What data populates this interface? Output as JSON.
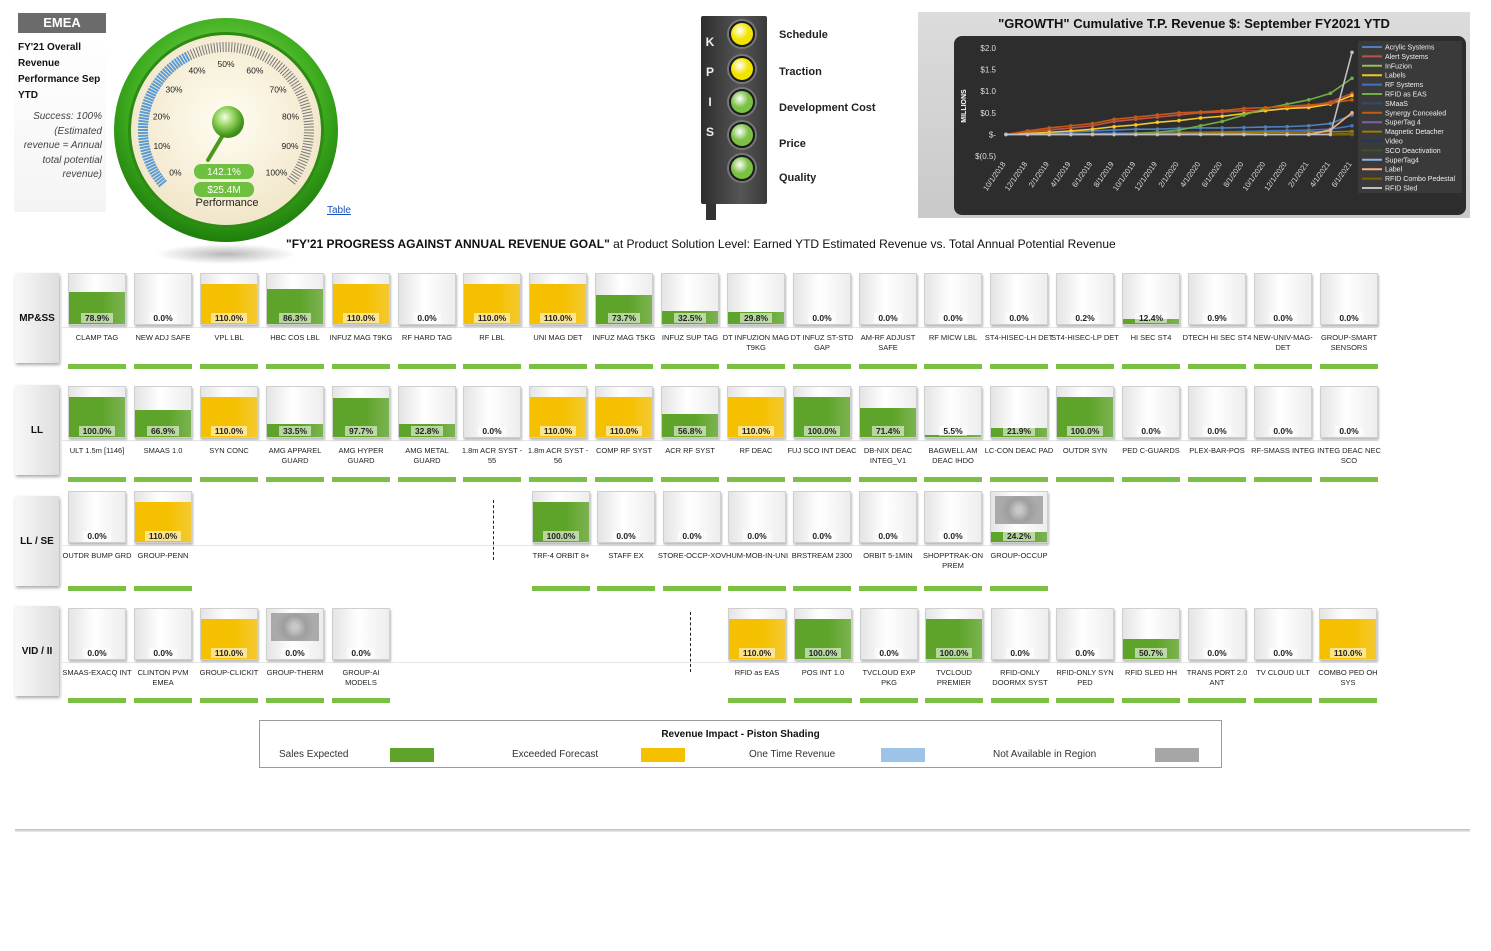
{
  "region": "EMEA",
  "overview": {
    "title": "FY'21 Overall Revenue Performance Sep YTD",
    "desc": "Success: 100% (Estimated revenue = Annual total potential revenue)"
  },
  "gauge": {
    "ticks": [
      "0%",
      "10%",
      "20%",
      "30%",
      "40%",
      "50%",
      "60%",
      "70%",
      "80%",
      "90%",
      "100%"
    ],
    "value_pct": "142.1%",
    "value_amt": "$25.4M",
    "label": "Performance"
  },
  "table_link": "Table",
  "kpi": {
    "letters": [
      "K",
      "P",
      "I",
      "S"
    ],
    "items": [
      {
        "label": "Schedule",
        "color": "#f2e400"
      },
      {
        "label": "Traction",
        "color": "#f2e400"
      },
      {
        "label": "Development Cost",
        "color": "#7bc144"
      },
      {
        "label": "Price",
        "color": "#7bc144"
      },
      {
        "label": "Quality",
        "color": "#7bc144"
      }
    ]
  },
  "chart_data": {
    "type": "line",
    "title": "\"GROWTH\" Cumulative T.P. Revenue $: September FY2021 YTD",
    "ylabel": "MILLIONS",
    "yticks": [
      "$2.0",
      "$1.5",
      "$1.0",
      "$0.5",
      "$-",
      "$(0.5)"
    ],
    "ylim": [
      -0.5,
      2.0
    ],
    "x": [
      "10/1/2018",
      "12/1/2018",
      "2/1/2019",
      "4/1/2019",
      "6/1/2019",
      "8/1/2019",
      "10/1/2019",
      "12/1/2019",
      "2/1/2020",
      "4/1/2020",
      "6/1/2020",
      "8/1/2020",
      "10/1/2020",
      "12/1/2020",
      "2/1/2021",
      "4/1/2021",
      "6/1/2021"
    ],
    "series": [
      {
        "name": "Acrylic Systems",
        "color": "#4f81bd",
        "values": [
          0,
          0,
          0.02,
          0.05,
          0.08,
          0.1,
          0.12,
          0.12,
          0.14,
          0.15,
          0.15,
          0.16,
          0.17,
          0.18,
          0.2,
          0.25,
          0.45
        ]
      },
      {
        "name": "Alert Systems",
        "color": "#c0504d",
        "values": [
          0,
          0.05,
          0.1,
          0.15,
          0.2,
          0.3,
          0.35,
          0.4,
          0.45,
          0.5,
          0.52,
          0.55,
          0.55,
          0.6,
          0.65,
          0.75,
          0.95
        ]
      },
      {
        "name": "InFuzion",
        "color": "#9bbb59",
        "values": [
          0,
          0,
          0,
          0,
          0,
          0,
          0,
          0,
          0,
          0,
          0,
          0,
          0,
          0,
          0,
          0,
          0.02
        ]
      },
      {
        "name": "Labels",
        "color": "#f6c624",
        "values": [
          0,
          0.02,
          0.05,
          0.08,
          0.12,
          0.18,
          0.22,
          0.28,
          0.32,
          0.38,
          0.42,
          0.48,
          0.55,
          0.6,
          0.62,
          0.7,
          0.9
        ]
      },
      {
        "name": "RF Systems",
        "color": "#4472c4",
        "values": [
          0,
          0,
          0,
          0.01,
          0.02,
          0.03,
          0.03,
          0.04,
          0.05,
          0.05,
          0.06,
          0.07,
          0.08,
          0.09,
          0.1,
          0.12,
          0.2
        ]
      },
      {
        "name": "RFID as EAS",
        "color": "#70ad47",
        "values": [
          0,
          0,
          0,
          0,
          0,
          0,
          0.02,
          0.05,
          0.1,
          0.2,
          0.3,
          0.45,
          0.6,
          0.7,
          0.8,
          0.95,
          1.3
        ]
      },
      {
        "name": "SMaaS",
        "color": "#2e4a7a",
        "values": [
          0,
          0,
          0,
          0,
          0,
          0,
          0,
          0,
          0,
          0,
          0,
          0,
          0,
          0,
          0,
          0,
          0.01
        ]
      },
      {
        "name": "Synergy Concealed",
        "color": "#c55a11",
        "values": [
          0,
          0.08,
          0.15,
          0.2,
          0.25,
          0.35,
          0.4,
          0.45,
          0.5,
          0.52,
          0.55,
          0.6,
          0.62,
          0.65,
          0.68,
          0.72,
          0.8
        ]
      },
      {
        "name": "SuperTag 4",
        "color": "#8064a2",
        "values": [
          0,
          0,
          0,
          0,
          0,
          0,
          0,
          0,
          0,
          0,
          0,
          0,
          0,
          0,
          0,
          0,
          0.01
        ]
      },
      {
        "name": "Magnetic Detacher",
        "color": "#9e7c0c",
        "values": [
          0,
          0,
          0,
          0,
          0.01,
          0.01,
          0.02,
          0.02,
          0.03,
          0.03,
          0.04,
          0.04,
          0.05,
          0.05,
          0.06,
          0.06,
          0.07
        ]
      },
      {
        "name": "Video",
        "color": "#203864",
        "values": [
          0,
          0,
          0,
          0,
          0,
          0,
          0,
          0,
          0,
          0,
          0,
          0,
          0,
          0,
          0,
          0,
          0
        ]
      },
      {
        "name": "SCO Deactivation",
        "color": "#375623",
        "values": [
          0,
          0,
          0,
          0,
          0,
          0,
          0,
          0,
          0,
          0,
          0,
          0,
          0,
          0,
          0,
          0,
          0.01
        ]
      },
      {
        "name": "SuperTag4",
        "color": "#8db4e2",
        "values": [
          0,
          0,
          0,
          0,
          0,
          0,
          0,
          0,
          0,
          0,
          0,
          0,
          0,
          0,
          0,
          0,
          0
        ]
      },
      {
        "name": "Label",
        "color": "#f4b183",
        "values": [
          0,
          0,
          0,
          0,
          0,
          0,
          0,
          0,
          0,
          0,
          0,
          0,
          0,
          0,
          0,
          0.1,
          0.5
        ]
      },
      {
        "name": "RFID Combo Pedestal",
        "color": "#7f6000",
        "values": [
          0,
          0,
          0,
          0,
          0,
          0,
          0,
          0,
          0,
          0,
          0,
          0,
          0,
          0,
          0,
          0,
          0
        ]
      },
      {
        "name": "RFID Sled",
        "color": "#bfbfbf",
        "values": [
          0,
          0,
          0,
          0,
          0,
          0,
          0,
          0,
          0,
          0,
          0,
          0,
          0,
          0,
          0,
          0,
          1.9
        ]
      }
    ]
  },
  "main_title_bold": "\"FY'21 PROGRESS AGAINST ANNUAL REVENUE GOAL\"",
  "main_title_rest": " at Product Solution Level: Earned YTD Estimated Revenue vs. Total Annual Potential Revenue",
  "rows": [
    {
      "name": "MP&SS",
      "tiles": [
        {
          "label": "CLAMP TAG",
          "pct": "78.9%",
          "fill": 0.789,
          "color": "green"
        },
        {
          "label": "NEW ADJ SAFE",
          "pct": "0.0%",
          "fill": 0,
          "color": "green"
        },
        {
          "label": "VPL LBL",
          "pct": "110.0%",
          "fill": 1,
          "color": "yellow"
        },
        {
          "label": "HBC COS LBL",
          "pct": "86.3%",
          "fill": 0.863,
          "color": "green"
        },
        {
          "label": "INFUZ MAG T9KG",
          "pct": "110.0%",
          "fill": 1,
          "color": "yellow"
        },
        {
          "label": "RF HARD TAG",
          "pct": "0.0%",
          "fill": 0,
          "color": "green"
        },
        {
          "label": "RF LBL",
          "pct": "110.0%",
          "fill": 1,
          "color": "yellow"
        },
        {
          "label": "UNI MAG DET",
          "pct": "110.0%",
          "fill": 1,
          "color": "yellow"
        },
        {
          "label": "INFUZ MAG T5KG",
          "pct": "73.7%",
          "fill": 0.737,
          "color": "green"
        },
        {
          "label": "INFUZ SUP TAG",
          "pct": "32.5%",
          "fill": 0.325,
          "color": "green"
        },
        {
          "label": "DT INFUZION MAG T9KG",
          "pct": "29.8%",
          "fill": 0.298,
          "color": "green"
        },
        {
          "label": "DT INFUZ ST-STD GAP",
          "pct": "0.0%",
          "fill": 0,
          "color": "green"
        },
        {
          "label": "AM-RF ADJUST SAFE",
          "pct": "0.0%",
          "fill": 0,
          "color": "green"
        },
        {
          "label": "RF MICW LBL",
          "pct": "0.0%",
          "fill": 0,
          "color": "green"
        },
        {
          "label": "ST4-HISEC-LH DET",
          "pct": "0.0%",
          "fill": 0,
          "color": "green"
        },
        {
          "label": "ST4-HISEC-LP DET",
          "pct": "0.2%",
          "fill": 0,
          "color": "green"
        },
        {
          "label": "HI SEC ST4",
          "pct": "12.4%",
          "fill": 0.124,
          "color": "green"
        },
        {
          "label": "DTECH HI SEC ST4",
          "pct": "0.9%",
          "fill": 0,
          "color": "green"
        },
        {
          "label": "NEW-UNIV-MAG-DET",
          "pct": "0.0%",
          "fill": 0,
          "color": "green"
        },
        {
          "label": "GROUP-SMART SENSORS",
          "pct": "0.0%",
          "fill": 0,
          "color": "green"
        }
      ]
    },
    {
      "name": "LL",
      "tiles": [
        {
          "label": "ULT 1.5m [1146]",
          "pct": "100.0%",
          "fill": 1,
          "color": "green"
        },
        {
          "label": "SMAAS 1.0",
          "pct": "66.9%",
          "fill": 0.669,
          "color": "green"
        },
        {
          "label": "SYN CONC",
          "pct": "110.0%",
          "fill": 1,
          "color": "yellow"
        },
        {
          "label": "AMG APPAREL GUARD",
          "pct": "33.5%",
          "fill": 0.335,
          "color": "green"
        },
        {
          "label": "AMG HYPER GUARD",
          "pct": "97.7%",
          "fill": 0.977,
          "color": "green"
        },
        {
          "label": "AMG METAL GUARD",
          "pct": "32.8%",
          "fill": 0.328,
          "color": "green"
        },
        {
          "label": "1.8m ACR SYST - 55",
          "pct": "0.0%",
          "fill": 0,
          "color": "green"
        },
        {
          "label": "1.8m ACR SYST - 56",
          "pct": "110.0%",
          "fill": 1,
          "color": "yellow"
        },
        {
          "label": "COMP RF SYST",
          "pct": "110.0%",
          "fill": 1,
          "color": "yellow"
        },
        {
          "label": "ACR RF SYST",
          "pct": "56.8%",
          "fill": 0.568,
          "color": "green"
        },
        {
          "label": "RF DEAC",
          "pct": "110.0%",
          "fill": 1,
          "color": "yellow"
        },
        {
          "label": "FUJ SCO INT DEAC",
          "pct": "100.0%",
          "fill": 1,
          "color": "green"
        },
        {
          "label": "DB-NIX DEAC INTEG_V1",
          "pct": "71.4%",
          "fill": 0.714,
          "color": "green"
        },
        {
          "label": "BAGWELL AM DEAC IHDO",
          "pct": "5.5%",
          "fill": 0.055,
          "color": "green"
        },
        {
          "label": "LC-CON DEAC PAD",
          "pct": "21.9%",
          "fill": 0.219,
          "color": "green"
        },
        {
          "label": "OUTDR SYN",
          "pct": "100.0%",
          "fill": 1,
          "color": "green"
        },
        {
          "label": "PED C-GUARDS",
          "pct": "0.0%",
          "fill": 0,
          "color": "green"
        },
        {
          "label": "PLEX-BAR-POS",
          "pct": "0.0%",
          "fill": 0,
          "color": "green"
        },
        {
          "label": "RF-SMASS INTEG",
          "pct": "0.0%",
          "fill": 0,
          "color": "green"
        },
        {
          "label": "INTEG DEAC NEC SCO",
          "pct": "0.0%",
          "fill": 0,
          "color": "green"
        }
      ]
    },
    {
      "name": "LL / SE",
      "tiles": [
        {
          "label": "OUTDR BUMP GRD",
          "pct": "0.0%",
          "fill": 0,
          "color": "green"
        },
        {
          "label": "GROUP-PENN",
          "pct": "110.0%",
          "fill": 1,
          "color": "yellow"
        },
        {
          "label": "TRF-4 ORBIT 8+",
          "pct": "100.0%",
          "fill": 1,
          "color": "green"
        },
        {
          "label": "STAFF EX",
          "pct": "0.0%",
          "fill": 0,
          "color": "green"
        },
        {
          "label": "STORE-OCCP-XOV",
          "pct": "0.0%",
          "fill": 0,
          "color": "green"
        },
        {
          "label": "HUM-MOB-IN-UNI",
          "pct": "0.0%",
          "fill": 0,
          "color": "green"
        },
        {
          "label": "BRSTREAM 2300",
          "pct": "0.0%",
          "fill": 0,
          "color": "green"
        },
        {
          "label": "ORBIT 5-1MIN",
          "pct": "0.0%",
          "fill": 0,
          "color": "green"
        },
        {
          "label": "SHOPPTRAK-ON PREM",
          "pct": "0.0%",
          "fill": 0,
          "color": "green"
        },
        {
          "label": "GROUP-OCCUP",
          "pct": "24.2%",
          "fill": 0.242,
          "color": "green",
          "pict": true
        }
      ]
    },
    {
      "name": "VID / II",
      "tiles": [
        {
          "label": "SMAAS-EXACQ INT",
          "pct": "0.0%",
          "fill": 0,
          "color": "green"
        },
        {
          "label": "CLINTON PVM EMEA",
          "pct": "0.0%",
          "fill": 0,
          "color": "green"
        },
        {
          "label": "GROUP-CLICKIT",
          "pct": "110.0%",
          "fill": 1,
          "color": "yellow"
        },
        {
          "label": "GROUP-THERM",
          "pct": "0.0%",
          "fill": 0,
          "color": "green",
          "pict": true
        },
        {
          "label": "GROUP-AI MODELS",
          "pct": "0.0%",
          "fill": 0,
          "color": "green"
        },
        {
          "label": "RFID as EAS",
          "pct": "110.0%",
          "fill": 1,
          "color": "yellow"
        },
        {
          "label": "POS INT 1.0",
          "pct": "100.0%",
          "fill": 1,
          "color": "green"
        },
        {
          "label": "TVCLOUD EXP PKG",
          "pct": "0.0%",
          "fill": 0,
          "color": "green"
        },
        {
          "label": "TVCLOUD PREMIER",
          "pct": "100.0%",
          "fill": 1,
          "color": "green"
        },
        {
          "label": "RFID-ONLY DOORMX SYST",
          "pct": "0.0%",
          "fill": 0,
          "color": "green"
        },
        {
          "label": "RFID-ONLY SYN PED",
          "pct": "0.0%",
          "fill": 0,
          "color": "green"
        },
        {
          "label": "RFID SLED HH",
          "pct": "50.7%",
          "fill": 0.507,
          "color": "green"
        },
        {
          "label": "TRANS PORT 2.0 ANT",
          "pct": "0.0%",
          "fill": 0,
          "color": "green"
        },
        {
          "label": "TV CLOUD ULT",
          "pct": "0.0%",
          "fill": 0,
          "color": "green"
        },
        {
          "label": "COMBO PED OH SYS",
          "pct": "110.0%",
          "fill": 1,
          "color": "yellow"
        }
      ]
    }
  ],
  "legend": {
    "title": "Revenue Impact - Piston Shading",
    "items": [
      {
        "label": "Sales Expected",
        "color": "#5fa42a"
      },
      {
        "label": "Exceeded Forecast",
        "color": "#f5c000"
      },
      {
        "label": "One Time Revenue",
        "color": "#9dc3e6"
      },
      {
        "label": "Not Available in Region",
        "color": "#a6a6a6"
      }
    ]
  },
  "colors": {
    "green": "#5fa42a",
    "yellow": "#f5c000"
  }
}
